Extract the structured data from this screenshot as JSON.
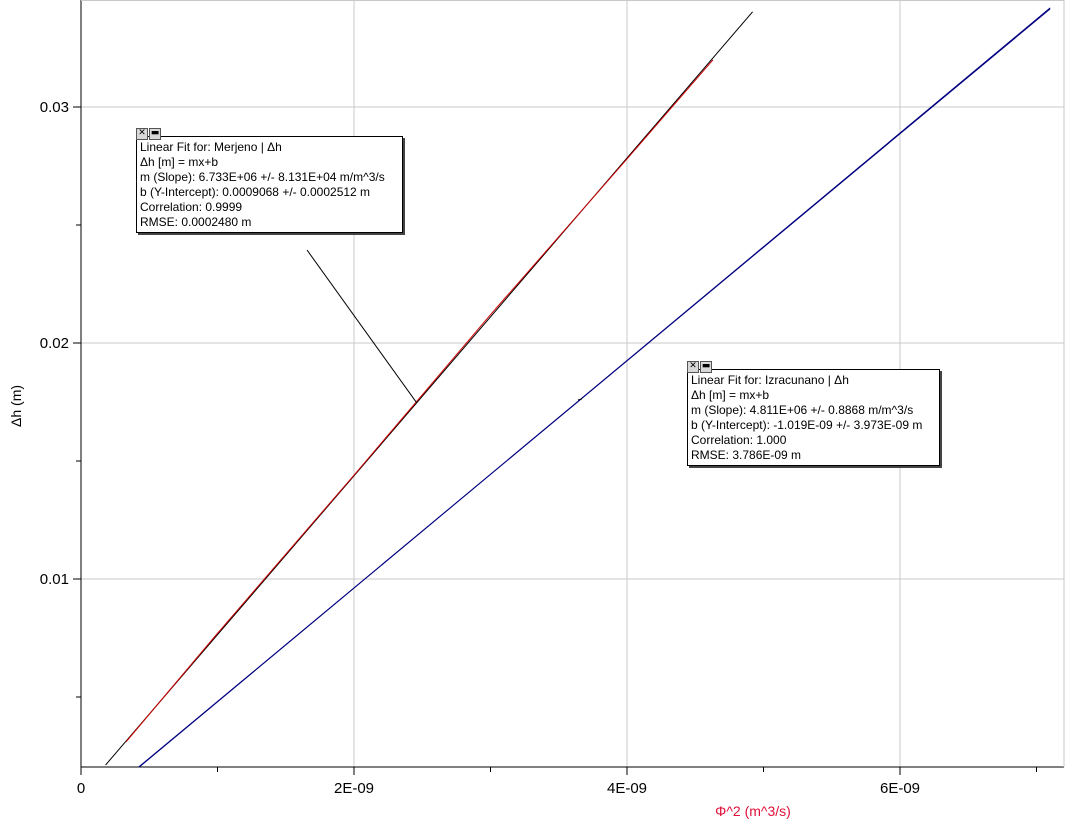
{
  "chart_data": {
    "type": "scatter",
    "xlabel": "Φ^2 (m^3/s)",
    "ylabel": "Δh (m)",
    "xlim": [
      0,
      7.2e-09
    ],
    "ylim": [
      0,
      0.034
    ],
    "grid": true,
    "x_ticks": [
      0,
      2e-09,
      4e-09,
      6e-09
    ],
    "x_tick_labels": [
      "0",
      "2E-09",
      "4E-09",
      "6E-09"
    ],
    "x_minor_ticks": [
      1e-09,
      3e-09,
      5e-09,
      7e-09
    ],
    "y_ticks": [
      0.01,
      0.02,
      0.03
    ],
    "y_tick_labels": [
      "0.01",
      "0.02",
      "0.03"
    ],
    "series": [
      {
        "name": "Merjeno",
        "color": "#cc0000",
        "x": [
          3.3e-10,
          1e-09,
          2e-09,
          3e-09,
          4e-09,
          4.63e-09
        ],
        "y": [
          0.0031,
          0.0077,
          0.0144,
          0.0212,
          0.0278,
          0.032
        ]
      },
      {
        "name": "Izracunano",
        "color": "#000080",
        "x": [
          4.2e-10,
          7.1e-09
        ],
        "y": [
          0.002,
          0.0342
        ]
      }
    ],
    "fits": [
      {
        "title": "Linear Fit for: Merjeno | Δh",
        "eq": "Δh [m] = mx+b",
        "slope": "m (Slope): 6.733E+06 +/- 8.131E+04 m/m^3/s",
        "intercept": "b (Y-Intercept): 0.0009068 +/- 0.0002512 m",
        "correlation": "Correlation: 0.9999",
        "rmse": "RMSE: 0.0002480 m",
        "m": 6733000.0,
        "b": 0.0009068,
        "x_range": [
          1.8e-10,
          4.92e-09
        ],
        "line_color": "#000000",
        "anchor": [
          2.46e-09,
          0.01746
        ]
      },
      {
        "title": "Linear Fit for: Izracunano | Δh",
        "eq": "Δh [m] = mx+b",
        "slope": "m (Slope): 4.811E+06 +/- 0.8868 m/m^3/s",
        "intercept": "b (Y-Intercept): -1.019E-09 +/- 3.973E-09 m",
        "correlation": "Correlation: 1.000",
        "rmse": "RMSE: 3.786E-09 m",
        "m": 4811000.0,
        "b": -1.019e-09,
        "x_range": [
          4.2e-10,
          7.1e-09
        ],
        "line_color": "#000080",
        "anchor": [
          3.67e-09,
          0.01763
        ]
      }
    ]
  },
  "box_buttons": {
    "close": "✕",
    "menu": "▬"
  }
}
